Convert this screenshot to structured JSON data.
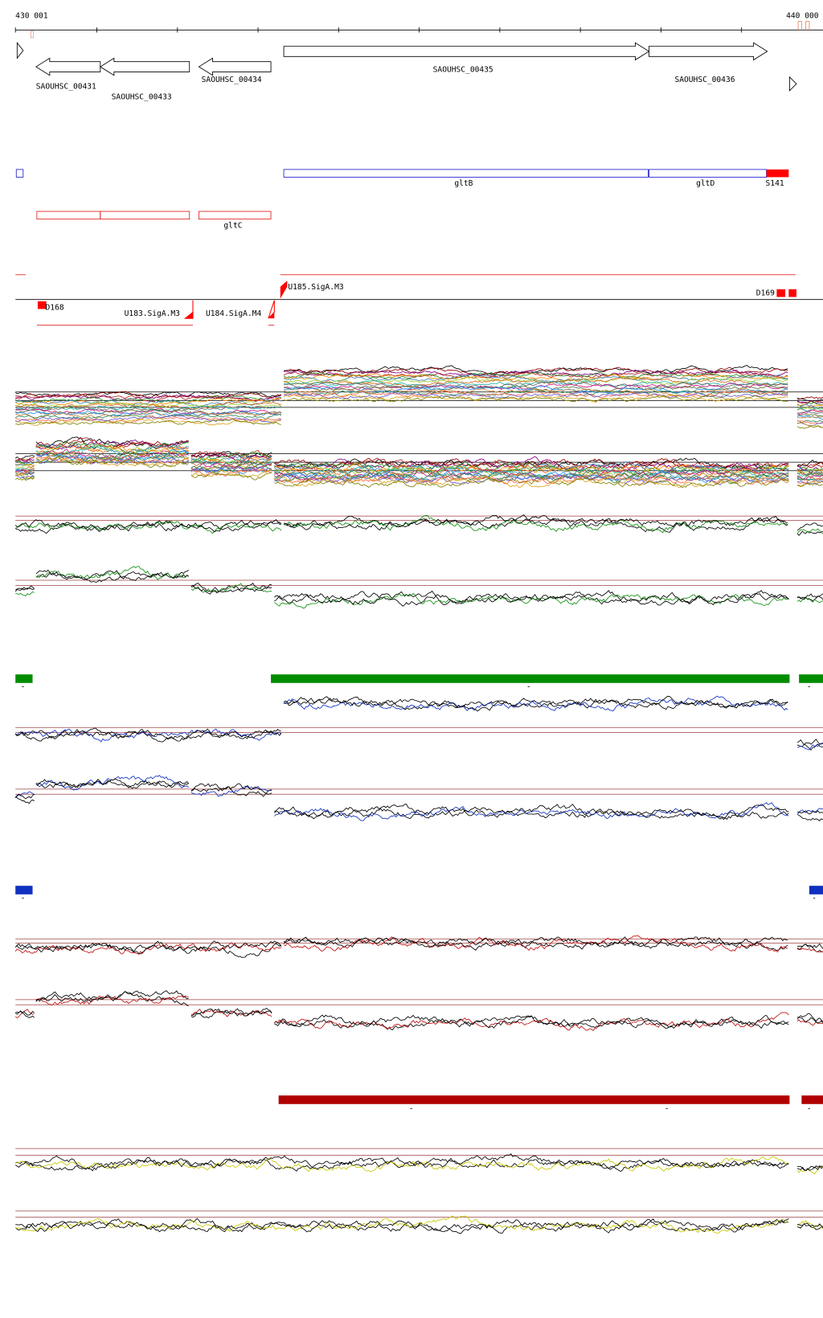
{
  "ruler": {
    "start": "430 001",
    "end": "440 000"
  },
  "genes": [
    "SAOUHSC_00431",
    "SAOUHSC_00433",
    "SAOUHSC_00434",
    "SAOUHSC_00435",
    "SAOUHSC_00436"
  ],
  "features": {
    "blue": [
      "gltB",
      "gltD",
      "S141"
    ],
    "red": [
      "gltC"
    ]
  },
  "regulators": [
    "U185.SigA.M3",
    "D168",
    "U183.SigA.M3",
    "U184.SigA.M4",
    "D169"
  ],
  "markers": [
    "-",
    "-",
    "-",
    "-",
    "-",
    "-",
    "-",
    "-"
  ]
}
